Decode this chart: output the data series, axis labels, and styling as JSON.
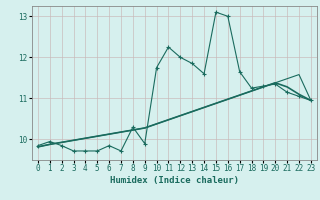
{
  "xlabel": "Humidex (Indice chaleur)",
  "xlim": [
    -0.5,
    23.5
  ],
  "ylim": [
    9.5,
    13.25
  ],
  "yticks": [
    10,
    11,
    12,
    13
  ],
  "xticks": [
    0,
    1,
    2,
    3,
    4,
    5,
    6,
    7,
    8,
    9,
    10,
    11,
    12,
    13,
    14,
    15,
    16,
    17,
    18,
    19,
    20,
    21,
    22,
    23
  ],
  "bg_color": "#d6f0ee",
  "grid_color": "#c8b8b8",
  "line_color": "#1a6b5e",
  "curve1_x": [
    0,
    1,
    2,
    3,
    4,
    5,
    6,
    7,
    8,
    9,
    10,
    11,
    12,
    13,
    14,
    15,
    16,
    17,
    18,
    19,
    20,
    21,
    22,
    23
  ],
  "curve1_y": [
    9.85,
    9.95,
    9.85,
    9.72,
    9.72,
    9.72,
    9.85,
    9.72,
    10.3,
    9.9,
    11.75,
    12.25,
    12.0,
    11.85,
    11.6,
    13.1,
    13.0,
    11.65,
    11.25,
    11.3,
    11.35,
    11.15,
    11.05,
    10.95
  ],
  "curve2_x": [
    0,
    1,
    2,
    3,
    4,
    5,
    6,
    7,
    8,
    9,
    10,
    11,
    12,
    13,
    14,
    15,
    16,
    17,
    18,
    19,
    20,
    21,
    22,
    23
  ],
  "curve2_y": [
    9.82,
    9.88,
    9.93,
    9.98,
    10.03,
    10.08,
    10.13,
    10.18,
    10.23,
    10.28,
    10.38,
    10.48,
    10.58,
    10.68,
    10.78,
    10.88,
    10.98,
    11.08,
    11.18,
    11.28,
    11.38,
    11.28,
    11.1,
    10.95
  ],
  "curve3_x": [
    0,
    1,
    2,
    3,
    4,
    5,
    6,
    7,
    8,
    9,
    10,
    11,
    12,
    13,
    14,
    15,
    16,
    17,
    18,
    19,
    20,
    21,
    22,
    23
  ],
  "curve3_y": [
    9.82,
    9.88,
    9.93,
    9.98,
    10.03,
    10.08,
    10.13,
    10.18,
    10.23,
    10.28,
    10.38,
    10.48,
    10.58,
    10.68,
    10.78,
    10.88,
    10.98,
    11.08,
    11.18,
    11.28,
    11.38,
    11.48,
    11.58,
    10.95
  ]
}
